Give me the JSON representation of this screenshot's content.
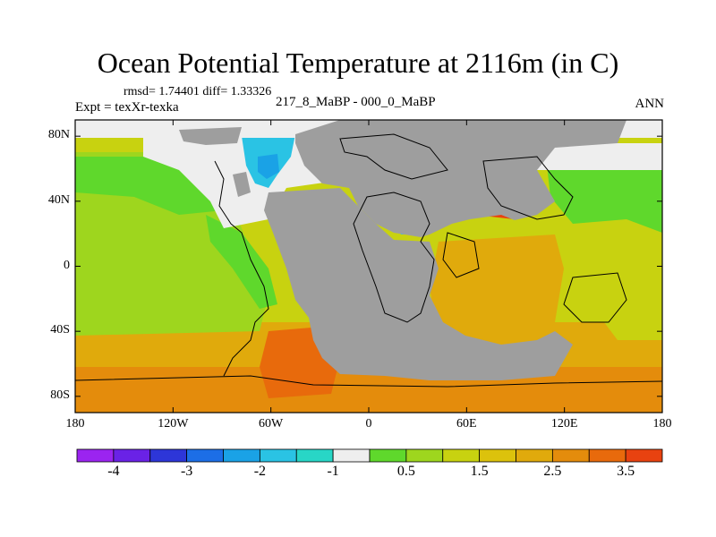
{
  "title": "Ocean Potential Temperature at 2116m (in C)",
  "stats": "rmsd= 1.74401 diff= 1.33326",
  "experiment": "Expt = texXr-texka",
  "difference_label": "217_8_MaBP - 000_0_MaBP",
  "season": "ANN",
  "y_ticks": [
    {
      "label": "80N",
      "lat": 80
    },
    {
      "label": "40N",
      "lat": 40
    },
    {
      "label": "0",
      "lat": 0
    },
    {
      "label": "40S",
      "lat": -40
    },
    {
      "label": "80S",
      "lat": -80
    }
  ],
  "x_ticks": [
    {
      "label": "180",
      "lon": -180
    },
    {
      "label": "120W",
      "lon": -120
    },
    {
      "label": "60W",
      "lon": -60
    },
    {
      "label": "0",
      "lon": 0
    },
    {
      "label": "60E",
      "lon": 60
    },
    {
      "label": "120E",
      "lon": 120
    },
    {
      "label": "180",
      "lon": 180
    }
  ],
  "colorbar": {
    "colors": [
      "#9b24f0",
      "#6a22e6",
      "#2d36d8",
      "#1c6ee6",
      "#1aa2e6",
      "#2ac3e4",
      "#28d6c6",
      "#eeeeee",
      "#5fd82c",
      "#9ed61e",
      "#c8d210",
      "#dcc20c",
      "#e0aa0c",
      "#e48c0c",
      "#e86a0c",
      "#e84210"
    ],
    "labels": [
      {
        "text": "-4",
        "index": 1
      },
      {
        "text": "-3",
        "index": 3
      },
      {
        "text": "-2",
        "index": 5
      },
      {
        "text": "-1",
        "index": 7
      },
      {
        "text": "0.5",
        "index": 9
      },
      {
        "text": "1.5",
        "index": 11
      },
      {
        "text": "2.5",
        "index": 13
      },
      {
        "text": "3.5",
        "index": 15
      }
    ]
  },
  "colors": {
    "land": "#9e9e9e",
    "coast": "#000000"
  }
}
